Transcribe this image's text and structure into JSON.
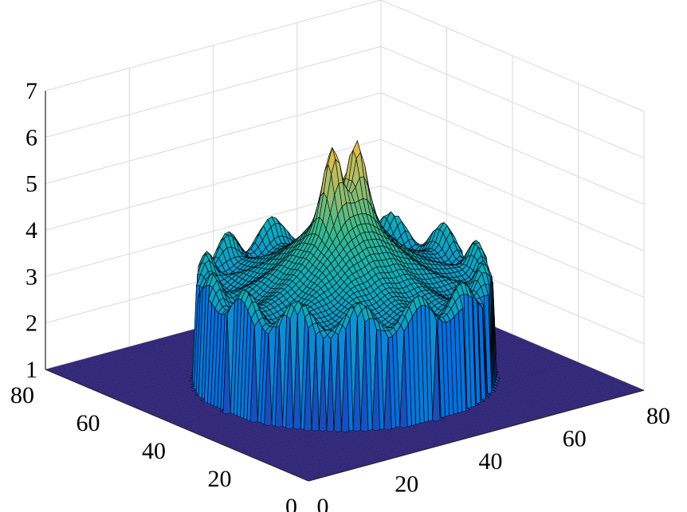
{
  "chart_data": {
    "type": "surface",
    "title": "",
    "xlabel": "",
    "ylabel": "",
    "zlabel": "",
    "x_range": [
      0,
      80
    ],
    "y_range": [
      0,
      80
    ],
    "z_range": [
      1,
      7
    ],
    "x_ticks": [
      0,
      20,
      40,
      60,
      80
    ],
    "y_ticks": [
      0,
      20,
      40,
      60,
      80
    ],
    "z_ticks": [
      1,
      2,
      3,
      4,
      5,
      6,
      7
    ],
    "grid": true,
    "colormap": "parula",
    "colormap_stops": [
      "#352a87",
      "#0268e1",
      "#108ed2",
      "#0fadb8",
      "#38b98c",
      "#a5be6a",
      "#f7ba3c",
      "#f9fb0e"
    ],
    "surface": {
      "description_of_shape": "circular plateau on a flat floor",
      "floor_level": 1.0,
      "center": [
        40,
        40
      ],
      "outer_radius": 28,
      "rim_height": 3.0,
      "center_height_peaks": 6.5,
      "peak_offsets": [
        [
          -3,
          0
        ],
        [
          3,
          0
        ]
      ],
      "grid_resolution": 80
    }
  }
}
